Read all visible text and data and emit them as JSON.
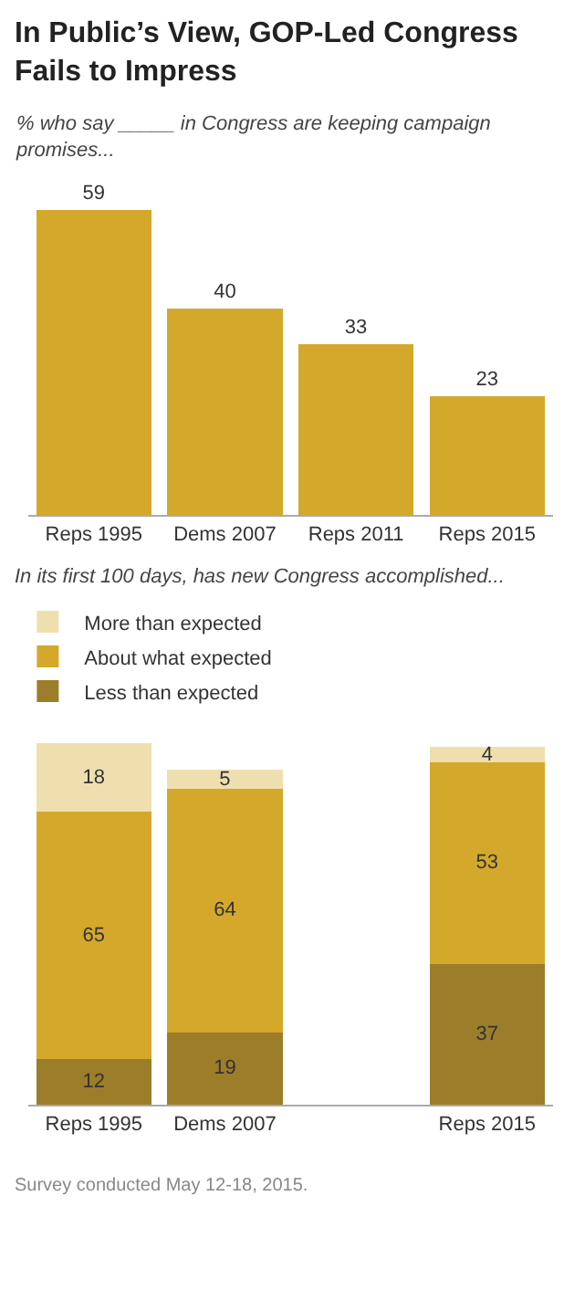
{
  "chart_data": [
    {
      "type": "bar",
      "title": "In Public’s View, GOP-Led Congress Fails to Impress",
      "subtitle": "% who say _____ in Congress are keeping campaign promises...",
      "categories": [
        "Reps 1995",
        "Dems 2007",
        "Reps 2011",
        "Reps 2015"
      ],
      "values": [
        59,
        40,
        33,
        23
      ],
      "color": "#d4a82a",
      "data_labels": true,
      "legend": false
    },
    {
      "type": "bar",
      "title": "In its first 100 days, has new Congress accomplished...",
      "stacked": true,
      "categories": [
        "Reps 1995",
        "Dems 2007",
        null,
        "Reps 2015"
      ],
      "series": [
        {
          "name": "Less than expected",
          "color": "#9c7d2a",
          "values": [
            12,
            19,
            null,
            37
          ]
        },
        {
          "name": "About what expected",
          "color": "#d4a82a",
          "values": [
            65,
            64,
            null,
            53
          ]
        },
        {
          "name": "More than expected",
          "color": "#f0dfae",
          "values": [
            18,
            5,
            null,
            4
          ]
        }
      ],
      "data_labels": true,
      "legend": "top left",
      "annotations": [
        "Survey conducted May 12-18, 2015."
      ]
    }
  ]
}
